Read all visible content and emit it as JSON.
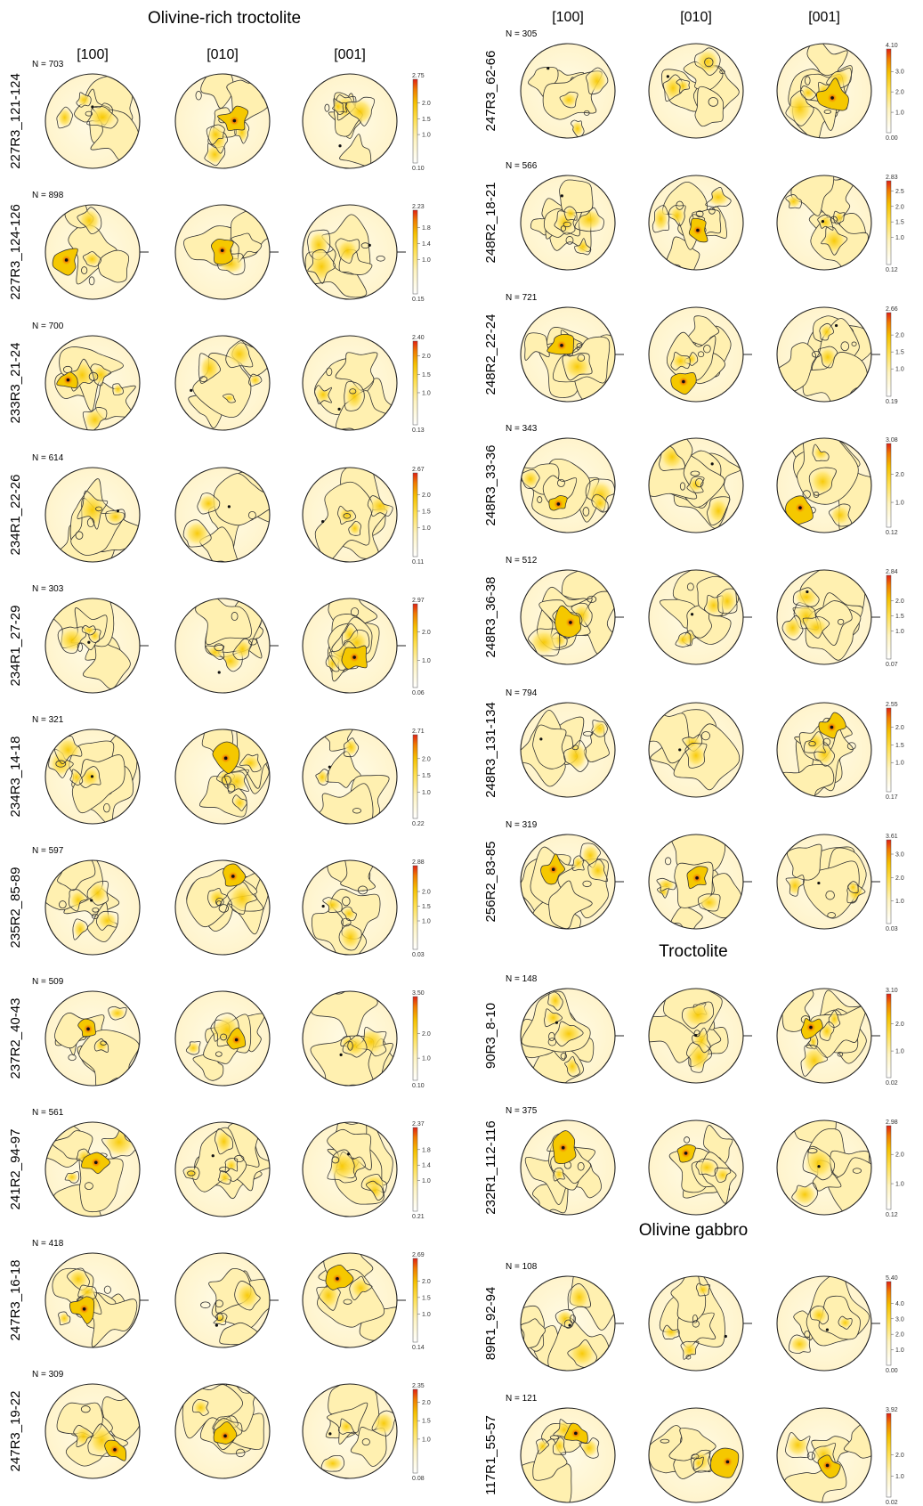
{
  "column_headers": [
    "[100]",
    "[010]",
    "[001]"
  ],
  "sections": [
    {
      "title": "Olivine-rich troctolite"
    },
    {
      "title": "Troctolite"
    },
    {
      "title": "Olivine gabbro"
    }
  ],
  "colors": {
    "scale": [
      "#ffffff",
      "#fff6c8",
      "#ffe66a",
      "#f5c800",
      "#f08a00",
      "#e52b1a"
    ],
    "outline": "#222222"
  },
  "icons": [
    "pole-figure-net",
    "maximum-density-point",
    "color-scale-bar"
  ],
  "samples": [
    {
      "id": "227R3_121-124",
      "n": "N = 703",
      "max": "2.75",
      "min": "0.10",
      "ticks": [
        "2.0",
        "1.5",
        "1.0"
      ],
      "tick_values": [
        2.0,
        1.5,
        1.0
      ],
      "marker": false
    },
    {
      "id": "227R3_124-126",
      "n": "N = 898",
      "max": "2.23",
      "min": "0.15",
      "ticks": [
        "1.8",
        "1.4",
        "1.0"
      ],
      "tick_values": [
        1.8,
        1.4,
        1.0
      ],
      "marker": true
    },
    {
      "id": "233R3_21-24",
      "n": "N = 700",
      "max": "2.40",
      "min": "0.13",
      "ticks": [
        "2.0",
        "1.5",
        "1.0"
      ],
      "tick_values": [
        2.0,
        1.5,
        1.0
      ],
      "marker": false
    },
    {
      "id": "234R1_22-26",
      "n": "N = 614",
      "max": "2.67",
      "min": "0.11",
      "ticks": [
        "2.0",
        "1.5",
        "1.0"
      ],
      "tick_values": [
        2.0,
        1.5,
        1.0
      ],
      "marker": false
    },
    {
      "id": "234R1_27-29",
      "n": "N = 303",
      "max": "2.97",
      "min": "0.06",
      "ticks": [
        "2.0",
        "1.0"
      ],
      "tick_values": [
        2.0,
        1.0
      ],
      "marker": true
    },
    {
      "id": "234R3_14-18",
      "n": "N = 321",
      "max": "2.71",
      "min": "0.22",
      "ticks": [
        "2.0",
        "1.5",
        "1.0"
      ],
      "tick_values": [
        2.0,
        1.5,
        1.0
      ],
      "marker": false
    },
    {
      "id": "235R2_85-89",
      "n": "N = 597",
      "max": "2.88",
      "min": "0.03",
      "ticks": [
        "2.0",
        "1.5",
        "1.0"
      ],
      "tick_values": [
        2.0,
        1.5,
        1.0
      ],
      "marker": false
    },
    {
      "id": "237R2_40-43",
      "n": "N = 509",
      "max": "3.50",
      "min": "0.10",
      "ticks": [
        "2.0",
        "1.0"
      ],
      "tick_values": [
        2.0,
        1.0
      ],
      "marker": false
    },
    {
      "id": "241R2_94-97",
      "n": "N = 561",
      "max": "2.37",
      "min": "0.21",
      "ticks": [
        "1.8",
        "1.4",
        "1.0"
      ],
      "tick_values": [
        1.8,
        1.4,
        1.0
      ],
      "marker": false
    },
    {
      "id": "247R3_16-18",
      "n": "N = 418",
      "max": "2.69",
      "min": "0.14",
      "ticks": [
        "2.0",
        "1.5",
        "1.0"
      ],
      "tick_values": [
        2.0,
        1.5,
        1.0
      ],
      "marker": true
    },
    {
      "id": "247R3_19-22",
      "n": "N = 309",
      "max": "2.35",
      "min": "0.08",
      "ticks": [
        "2.0",
        "1.5",
        "1.0"
      ],
      "tick_values": [
        2.0,
        1.5,
        1.0
      ],
      "marker": false
    },
    {
      "id": "247R3_62-66",
      "n": "N = 305",
      "max": "4.10",
      "min": "0.00",
      "ticks": [
        "3.0",
        "2.0",
        "1.0"
      ],
      "tick_values": [
        3.0,
        2.0,
        1.0
      ],
      "marker": false
    },
    {
      "id": "248R2_18-21",
      "n": "N = 566",
      "max": "2.83",
      "min": "0.12",
      "ticks": [
        "2.5",
        "2.0",
        "1.5",
        "1.0"
      ],
      "tick_values": [
        2.5,
        2.0,
        1.5,
        1.0
      ],
      "marker": false
    },
    {
      "id": "248R2_22-24",
      "n": "N = 721",
      "max": "2.66",
      "min": "0.19",
      "ticks": [
        "2.0",
        "1.5",
        "1.0"
      ],
      "tick_values": [
        2.0,
        1.5,
        1.0
      ],
      "marker": true
    },
    {
      "id": "248R3_33-36",
      "n": "N = 343",
      "max": "3.08",
      "min": "0.12",
      "ticks": [
        "2.0",
        "1.0"
      ],
      "tick_values": [
        2.0,
        1.0
      ],
      "marker": false
    },
    {
      "id": "248R3_36-38",
      "n": "N = 512",
      "max": "2.84",
      "min": "0.07",
      "ticks": [
        "2.0",
        "1.5",
        "1.0"
      ],
      "tick_values": [
        2.0,
        1.5,
        1.0
      ],
      "marker": true
    },
    {
      "id": "248R3_131-134",
      "n": "N = 794",
      "max": "2.55",
      "min": "0.17",
      "ticks": [
        "2.0",
        "1.5",
        "1.0"
      ],
      "tick_values": [
        2.0,
        1.5,
        1.0
      ],
      "marker": false
    },
    {
      "id": "256R2_83-85",
      "n": "N = 319",
      "max": "3.61",
      "min": "0.03",
      "ticks": [
        "3.0",
        "2.0",
        "1.0"
      ],
      "tick_values": [
        3.0,
        2.0,
        1.0
      ],
      "marker": true
    },
    {
      "id": "90R3_8-10",
      "n": "N = 148",
      "max": "3.10",
      "min": "0.02",
      "ticks": [
        "2.0",
        "1.0"
      ],
      "tick_values": [
        2.0,
        1.0
      ],
      "marker": true
    },
    {
      "id": "232R1_112-116",
      "n": "N = 375",
      "max": "2.98",
      "min": "0.12",
      "ticks": [
        "2.0",
        "1.0"
      ],
      "tick_values": [
        2.0,
        1.0
      ],
      "marker": false
    },
    {
      "id": "89R1_92-94",
      "n": "N = 108",
      "max": "5.40",
      "min": "0.00",
      "ticks": [
        "4.0",
        "3.0",
        "2.0",
        "1.0"
      ],
      "tick_values": [
        4.0,
        3.0,
        2.0,
        1.0
      ],
      "marker": true
    },
    {
      "id": "117R1_55-57",
      "n": "N = 121",
      "max": "3.92",
      "min": "0.02",
      "ticks": [
        "2.0",
        "1.0"
      ],
      "tick_values": [
        2.0,
        1.0
      ],
      "marker": false
    }
  ]
}
